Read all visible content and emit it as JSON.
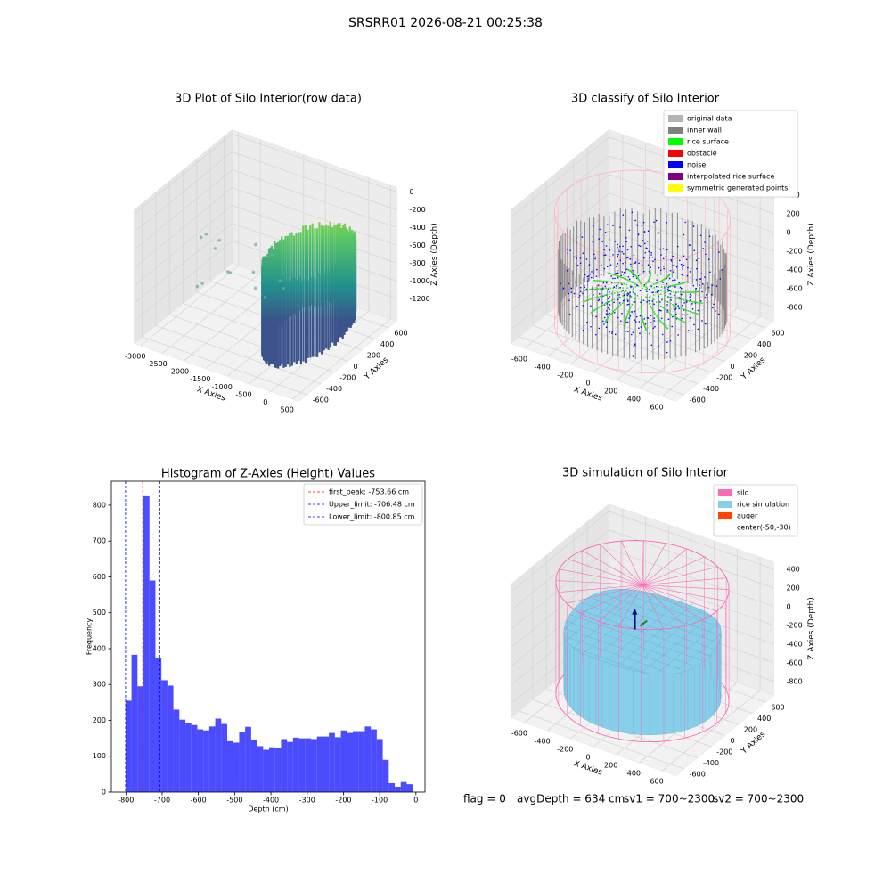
{
  "title": "SRSRR01 2026-08-21 00:25:38",
  "chart_data": [
    {
      "type": "scatter3d",
      "title": "3D Plot of Silo Interior(row data)",
      "xlabel": "X Axies",
      "ylabel": "Y Axies",
      "zlabel": "Z Axies (Depth)",
      "xlim": [
        -3150,
        650
      ],
      "ylim": [
        -720,
        720
      ],
      "zlim": [
        -1450,
        50
      ],
      "xticks": [
        -3000,
        -2500,
        -2000,
        -1500,
        -1000,
        -500,
        0,
        500
      ],
      "yticks": [
        -600,
        -400,
        -200,
        0,
        200,
        400,
        600
      ],
      "zticks": [
        -1200,
        -1000,
        -800,
        -600,
        -400,
        -200,
        0
      ]
    },
    {
      "type": "scatter3d",
      "title": "3D classify of Silo Interior",
      "xlabel": "X Axies",
      "ylabel": "Y Axies",
      "zlabel": "Z Axies (Depth)",
      "xlim": [
        -720,
        720
      ],
      "ylim": [
        -720,
        720
      ],
      "zlim": [
        -950,
        480
      ],
      "xticks": [
        -600,
        -400,
        -200,
        0,
        200,
        400,
        600
      ],
      "yticks": [
        -600,
        -400,
        -200,
        0,
        200,
        400,
        600
      ],
      "zticks": [
        -800,
        -600,
        -400,
        -200,
        0,
        200,
        400
      ],
      "legend_loc": "upper right",
      "legend": [
        {
          "name": "original data",
          "color": "#b3b3b3"
        },
        {
          "name": "inner wall",
          "color": "#808080"
        },
        {
          "name": "rice surface",
          "color": "#00ff00"
        },
        {
          "name": "obstacle",
          "color": "#ff0000"
        },
        {
          "name": "noise",
          "color": "#0000ff"
        },
        {
          "name": "interpolated rice surface",
          "color": "#800080"
        },
        {
          "name": "symmetric generated points",
          "color": "#ffff00"
        }
      ]
    },
    {
      "type": "histogram",
      "title": "Histogram of Z-Axies (Height) Values",
      "xlabel": "Depth (cm)",
      "ylabel": "Frequency",
      "color": "blue",
      "bins": [
        -801,
        -784.5,
        -768,
        -751.5,
        -735,
        -718.5,
        -702,
        -685.5,
        -669,
        -652.5,
        -636,
        -619.5,
        -603,
        -586.5,
        -570,
        -553.5,
        -537,
        -520.5,
        -504,
        -487.5,
        -471,
        -454.5,
        -438,
        -421.5,
        -405,
        -388.5,
        -372,
        -355.5,
        -339,
        -322.5,
        -306,
        -289.5,
        -273,
        -256.5,
        -240,
        -223.5,
        -207,
        -190.5,
        -174,
        -157.5,
        -141,
        -124.5,
        -108,
        -91.5,
        -75,
        -58.5,
        -42,
        -25.5,
        -9
      ],
      "values": [
        255,
        383,
        295,
        825,
        590,
        373,
        312,
        297,
        230,
        202,
        192,
        187,
        175,
        172,
        183,
        205,
        190,
        142,
        138,
        167,
        182,
        145,
        128,
        118,
        125,
        124,
        148,
        140,
        152,
        150,
        150,
        148,
        155,
        155,
        165,
        153,
        172,
        165,
        170,
        170,
        183,
        175,
        148,
        90,
        25,
        15,
        28,
        22
      ],
      "xlim": [
        -840,
        25
      ],
      "ylim": [
        0,
        867
      ],
      "xticks": [
        -800,
        -700,
        -600,
        -500,
        -400,
        -300,
        -200,
        -100,
        0
      ],
      "yticks": [
        0,
        100,
        200,
        300,
        400,
        500,
        600,
        700,
        800
      ],
      "legend_loc": "upper right",
      "lines": [
        {
          "name": "first_peak: -753.66 cm",
          "value": -753.66,
          "color": "red"
        },
        {
          "name": "Upper_limit: -706.48 cm",
          "value": -706.48,
          "color": "blue"
        },
        {
          "name": "Lower_limit: -800.85 cm",
          "value": -800.85,
          "color": "blue"
        }
      ]
    },
    {
      "type": "surface3d",
      "title": "3D simulation of Silo Interior",
      "xlabel": "X Axies",
      "ylabel": "Y Axies",
      "zlabel": "Z Axies (Depth)",
      "xlim": [
        -720,
        720
      ],
      "ylim": [
        -720,
        720
      ],
      "zlim": [
        -950,
        480
      ],
      "xticks": [
        -600,
        -400,
        -200,
        0,
        200,
        400,
        600
      ],
      "yticks": [
        -600,
        -400,
        -200,
        0,
        200,
        400,
        600
      ],
      "zticks": [
        -800,
        -600,
        -400,
        -200,
        0,
        200,
        400
      ],
      "legend_loc": "upper right",
      "legend": [
        {
          "name": "silo",
          "color": "#ff69b4"
        },
        {
          "name": "rice simulation",
          "color": "#87ceeb"
        },
        {
          "name": "auger",
          "color": "#ff4500"
        },
        {
          "name": "center(-50,-30)",
          "color": "white"
        }
      ]
    }
  ],
  "footer": [
    "flag = 0",
    "avgDepth = 634 cm",
    "sv1 = 700~2300",
    "sv2 = 700~2300"
  ]
}
